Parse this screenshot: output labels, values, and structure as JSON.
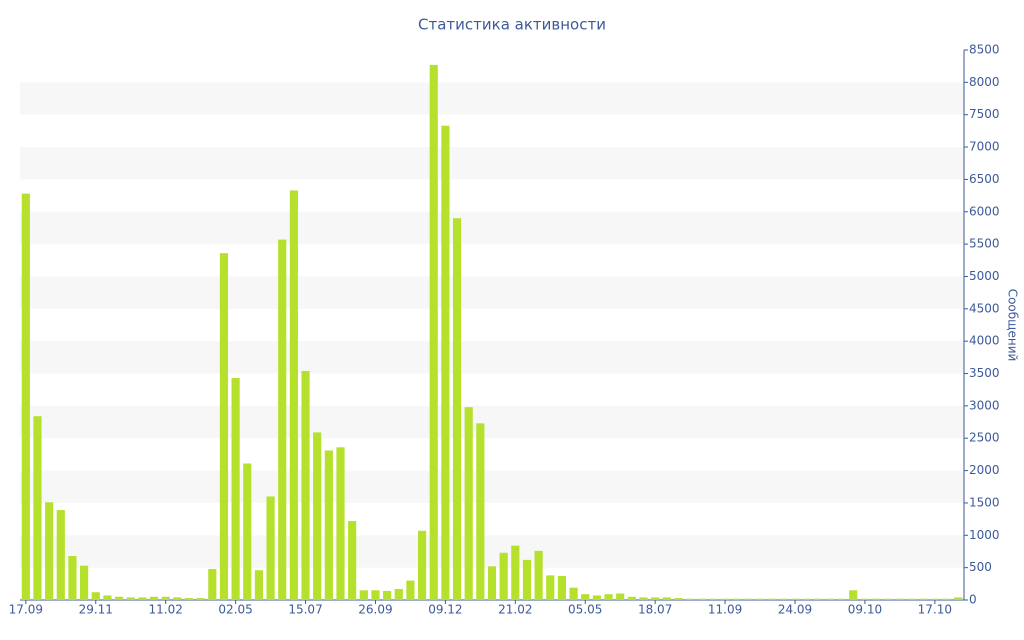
{
  "chart_data": {
    "type": "bar",
    "title": "Статистика активности",
    "y_label": "Сообщений",
    "categories": [
      "17.09",
      null,
      null,
      null,
      null,
      null,
      "29.11",
      null,
      null,
      null,
      null,
      null,
      "11.02",
      null,
      null,
      null,
      null,
      null,
      "02.05",
      null,
      null,
      null,
      null,
      null,
      "15.07",
      null,
      null,
      null,
      null,
      null,
      "26.09",
      null,
      null,
      null,
      null,
      null,
      "09.12",
      null,
      null,
      null,
      null,
      null,
      "21.02",
      null,
      null,
      null,
      null,
      null,
      "05.05",
      null,
      null,
      null,
      null,
      null,
      "18.07",
      null,
      null,
      null,
      null,
      null,
      "11.09",
      null,
      null,
      null,
      null,
      null,
      "24.09",
      null,
      null,
      null,
      null,
      null,
      "09.10",
      null,
      null,
      null,
      null,
      null,
      "17.10",
      null,
      null
    ],
    "values": [
      6280,
      2840,
      1510,
      1390,
      680,
      530,
      120,
      70,
      50,
      40,
      40,
      50,
      50,
      40,
      30,
      30,
      480,
      5360,
      3430,
      2110,
      460,
      1600,
      5570,
      6330,
      3540,
      2590,
      2310,
      2360,
      1220,
      150,
      150,
      140,
      170,
      300,
      1070,
      8270,
      7330,
      5900,
      2980,
      2730,
      520,
      730,
      840,
      620,
      760,
      380,
      370,
      190,
      90,
      70,
      90,
      100,
      50,
      40,
      40,
      40,
      30,
      20,
      20,
      20,
      20,
      20,
      20,
      20,
      20,
      20,
      20,
      20,
      20,
      20,
      20,
      150,
      20,
      20,
      20,
      20,
      20,
      20,
      20,
      20,
      40
    ],
    "color": "#b5e02b",
    "ylim": [
      0,
      8500
    ],
    "yticks": [
      0,
      500,
      1000,
      1500,
      2000,
      2500,
      3000,
      3500,
      4000,
      4500,
      5000,
      5500,
      6000,
      6500,
      7000,
      7500,
      8000,
      8500
    ],
    "grid": true,
    "y_axis_side": "right"
  }
}
